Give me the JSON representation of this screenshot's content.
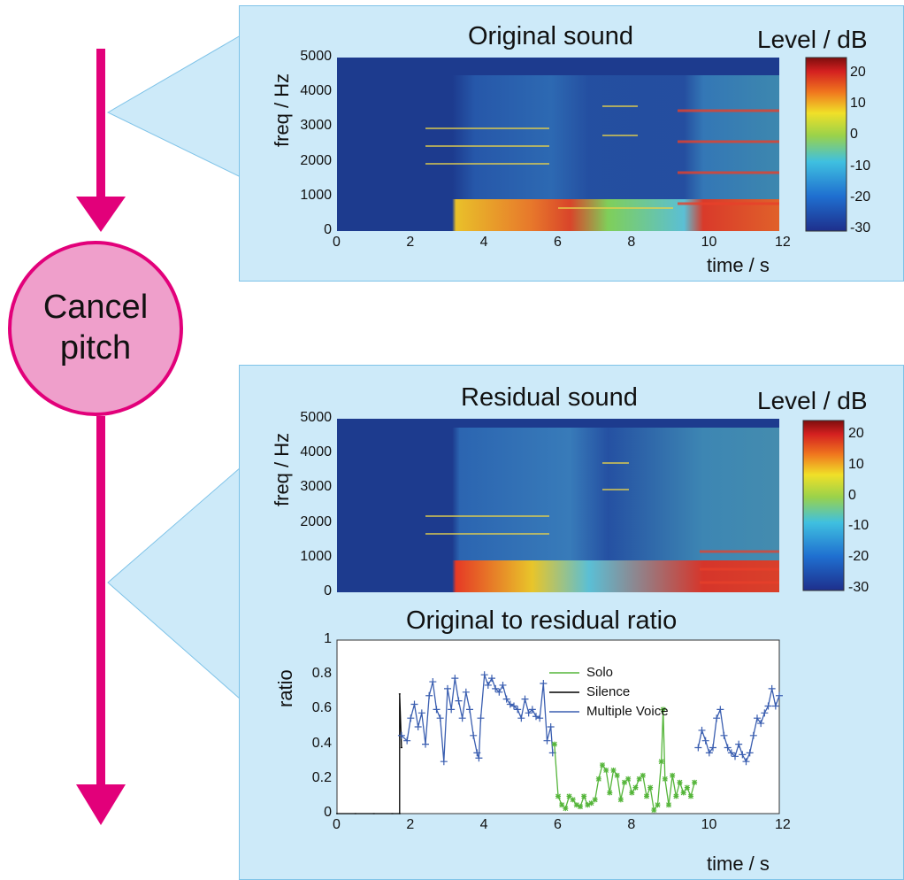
{
  "process": {
    "label_line1": "Cancel",
    "label_line2": "pitch",
    "colors": {
      "arrow": "#e2007a",
      "circle_fill": "#ef9fcb",
      "panel": "#cdeaf9"
    }
  },
  "top_panel": {
    "title": "Original sound",
    "ylabel": "freq / Hz",
    "xlabel": "time / s",
    "yticks": [
      "5000",
      "4000",
      "3000",
      "2000",
      "1000",
      "0"
    ],
    "xticks": [
      "0",
      "2",
      "4",
      "6",
      "8",
      "10",
      "12"
    ],
    "colorbar": {
      "title": "Level / dB",
      "ticks": [
        "20",
        "10",
        "0",
        "-10",
        "-20",
        "-30"
      ]
    }
  },
  "bottom_panel": {
    "title": "Residual sound",
    "ylabel": "freq / Hz",
    "yticks": [
      "5000",
      "4000",
      "3000",
      "2000",
      "1000",
      "0"
    ],
    "colorbar": {
      "title": "Level / dB",
      "ticks": [
        "20",
        "10",
        "0",
        "-10",
        "-20",
        "-30"
      ]
    },
    "ratio_chart": {
      "title": "Original to residual ratio",
      "ylabel": "ratio",
      "xlabel": "time / s",
      "yticks": [
        "1",
        "0.8",
        "0.6",
        "0.4",
        "0.2",
        "0"
      ],
      "xticks": [
        "0",
        "2",
        "4",
        "6",
        "8",
        "10",
        "12"
      ],
      "legend": [
        "Solo",
        "Silence",
        "Multiple Voice"
      ]
    }
  },
  "chart_data": {
    "type": "line",
    "title": "Original to residual ratio",
    "xlabel": "time / s",
    "ylabel": "ratio",
    "xlim": [
      0,
      12
    ],
    "ylim": [
      0,
      1
    ],
    "series": [
      {
        "name": "Silence",
        "color": "#000000",
        "x": [
          0,
          0.5,
          1.0,
          1.5,
          1.7,
          1.7,
          1.75
        ],
        "y": [
          0,
          0,
          0,
          0,
          0,
          0.69,
          0.38
        ]
      },
      {
        "name": "Multiple Voice",
        "color": "#3a5eb0",
        "x": [
          1.75,
          1.9,
          2.0,
          2.1,
          2.2,
          2.3,
          2.4,
          2.5,
          2.6,
          2.7,
          2.8,
          2.9,
          3.0,
          3.1,
          3.2,
          3.3,
          3.4,
          3.5,
          3.6,
          3.7,
          3.8,
          3.85,
          3.9,
          4.0,
          4.1,
          4.2,
          4.3,
          4.4,
          4.5,
          4.6,
          4.7,
          4.8,
          4.9,
          5.0,
          5.1,
          5.2,
          5.3,
          5.4,
          5.5,
          5.6,
          5.7,
          5.8,
          5.85
        ],
        "y": [
          0.45,
          0.42,
          0.55,
          0.63,
          0.5,
          0.58,
          0.4,
          0.68,
          0.76,
          0.6,
          0.55,
          0.3,
          0.72,
          0.6,
          0.78,
          0.65,
          0.55,
          0.7,
          0.6,
          0.45,
          0.35,
          0.32,
          0.55,
          0.8,
          0.74,
          0.78,
          0.72,
          0.7,
          0.74,
          0.66,
          0.63,
          0.62,
          0.6,
          0.55,
          0.66,
          0.58,
          0.6,
          0.56,
          0.55,
          0.75,
          0.42,
          0.5,
          0.35
        ]
      },
      {
        "name": "Multiple Voice",
        "color": "#3a5eb0",
        "x": [
          9.8,
          9.9,
          10.0,
          10.1,
          10.2,
          10.3,
          10.4,
          10.5,
          10.6,
          10.7,
          10.8,
          10.9,
          11.0,
          11.1,
          11.2,
          11.3,
          11.4,
          11.5,
          11.6,
          11.7,
          11.8,
          11.9,
          12.0
        ],
        "y": [
          0.38,
          0.48,
          0.42,
          0.35,
          0.38,
          0.55,
          0.6,
          0.45,
          0.38,
          0.35,
          0.33,
          0.4,
          0.34,
          0.3,
          0.35,
          0.45,
          0.55,
          0.52,
          0.58,
          0.62,
          0.72,
          0.62,
          0.68
        ]
      },
      {
        "name": "Solo",
        "color": "#55b53a",
        "x": [
          5.9,
          6.0,
          6.1,
          6.2,
          6.3,
          6.4,
          6.5,
          6.6,
          6.7,
          6.8,
          6.9,
          7.0,
          7.1,
          7.2,
          7.3,
          7.4,
          7.5,
          7.6,
          7.7,
          7.8,
          7.9,
          8.0,
          8.1,
          8.2,
          8.3,
          8.4,
          8.5,
          8.6,
          8.7,
          8.8,
          8.85,
          8.9,
          9.0,
          9.1,
          9.2,
          9.3,
          9.4,
          9.5,
          9.6,
          9.7
        ],
        "y": [
          0.4,
          0.1,
          0.05,
          0.03,
          0.1,
          0.08,
          0.05,
          0.04,
          0.1,
          0.05,
          0.06,
          0.08,
          0.2,
          0.28,
          0.25,
          0.12,
          0.25,
          0.22,
          0.08,
          0.18,
          0.2,
          0.12,
          0.15,
          0.2,
          0.22,
          0.1,
          0.15,
          0.02,
          0.05,
          0.3,
          0.6,
          0.2,
          0.05,
          0.22,
          0.1,
          0.18,
          0.12,
          0.15,
          0.1,
          0.18
        ]
      }
    ]
  }
}
